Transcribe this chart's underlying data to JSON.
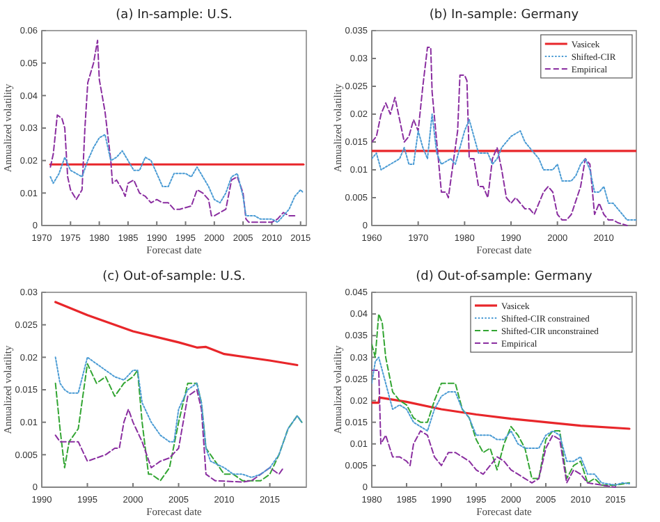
{
  "chart_data": [
    {
      "type": "line",
      "title": "(a) In-sample: U.S.",
      "xlabel": "Forecast date",
      "ylabel": "Annualized volatility",
      "xlim": [
        1970,
        2016
      ],
      "xticks": [
        1970,
        1975,
        1980,
        1985,
        1990,
        1995,
        2000,
        2005,
        2010,
        2015
      ],
      "ylim": [
        0,
        0.06
      ],
      "yticks": [
        0,
        0.01,
        0.02,
        0.03,
        0.04,
        0.05,
        0.06
      ],
      "legend": false,
      "series": [
        {
          "color": "#e8262a",
          "line_style": "solid",
          "x": [
            1971.5,
            2015.5
          ],
          "values": [
            0.0188,
            0.0188
          ]
        },
        {
          "color": "#4a9bd4",
          "line_style": "dotted",
          "x": [
            1971.5,
            1972,
            1973,
            1974,
            1975,
            1976,
            1977,
            1978,
            1979,
            1980,
            1981,
            1982,
            1983,
            1984,
            1985,
            1986,
            1987,
            1988,
            1989,
            1990,
            1991,
            1992,
            1993,
            1995,
            1996,
            1997,
            1998,
            1999,
            2000,
            2001,
            2002,
            2003,
            2004,
            2005,
            2005.5,
            2007,
            2008,
            2010,
            2011,
            2012,
            2013,
            2014,
            2015,
            2015.5
          ],
          "values": [
            0.015,
            0.013,
            0.016,
            0.021,
            0.017,
            0.016,
            0.015,
            0.02,
            0.024,
            0.027,
            0.028,
            0.02,
            0.021,
            0.023,
            0.02,
            0.017,
            0.017,
            0.021,
            0.02,
            0.016,
            0.012,
            0.012,
            0.016,
            0.016,
            0.015,
            0.018,
            0.015,
            0.012,
            0.008,
            0.007,
            0.01,
            0.015,
            0.016,
            0.009,
            0.003,
            0.003,
            0.002,
            0.002,
            0.001,
            0.003,
            0.005,
            0.009,
            0.011,
            0.01
          ]
        },
        {
          "color": "#8a2ea0",
          "line_style": "dashed",
          "x": [
            1971.5,
            1972,
            1972.7,
            1973.5,
            1974,
            1974.5,
            1975,
            1976,
            1977,
            1977.5,
            1978,
            1979,
            1979.7,
            1980,
            1981,
            1982,
            1982.3,
            1983,
            1984,
            1984.5,
            1985,
            1986,
            1987,
            1988,
            1989,
            1990,
            1991,
            1992,
            1993,
            1994,
            1996,
            1997,
            1998,
            1999,
            1999.5,
            2000,
            2002,
            2003,
            2004,
            2005,
            2005.5,
            2006,
            2008,
            2009,
            2010,
            2011,
            2012,
            2013,
            2014
          ],
          "values": [
            0.018,
            0.022,
            0.034,
            0.033,
            0.03,
            0.015,
            0.011,
            0.008,
            0.011,
            0.03,
            0.044,
            0.05,
            0.057,
            0.045,
            0.035,
            0.02,
            0.013,
            0.014,
            0.011,
            0.009,
            0.013,
            0.014,
            0.01,
            0.009,
            0.007,
            0.008,
            0.007,
            0.007,
            0.005,
            0.005,
            0.006,
            0.011,
            0.01,
            0.008,
            0.003,
            0.003,
            0.005,
            0.014,
            0.015,
            0.01,
            0.002,
            0.001,
            0.001,
            0.001,
            0.001,
            0.002,
            0.004,
            0.003,
            0.003
          ]
        }
      ]
    },
    {
      "type": "line",
      "title": "(b) In-sample: Germany",
      "xlabel": "Forecast date",
      "ylabel": "Annualized volatility",
      "xlim": [
        1960,
        2017
      ],
      "xticks": [
        1960,
        1970,
        1980,
        1990,
        2000,
        2010
      ],
      "ylim": [
        0,
        0.035
      ],
      "yticks": [
        0,
        0.005,
        0.01,
        0.015,
        0.02,
        0.025,
        0.03,
        0.035
      ],
      "legend": "top right",
      "series": [
        {
          "name": "Vasicek",
          "color": "#e8262a",
          "line_style": "solid",
          "x": [
            1960,
            2017
          ],
          "values": [
            0.0134,
            0.0134
          ]
        },
        {
          "name": "Shifted-CIR",
          "color": "#4a9bd4",
          "line_style": "dotted",
          "x": [
            1960,
            1961,
            1962,
            1964,
            1966,
            1967,
            1968,
            1969,
            1970,
            1971,
            1972,
            1973,
            1974,
            1975,
            1977,
            1978,
            1980,
            1981,
            1982,
            1983,
            1985,
            1986,
            1987,
            1988,
            1990,
            1992,
            1993,
            1995,
            1996,
            1997,
            1999,
            2000,
            2001,
            2003,
            2004,
            2005,
            2006,
            2007,
            2008,
            2009,
            2010,
            2011,
            2012,
            2013,
            2015,
            2017
          ],
          "values": [
            0.012,
            0.013,
            0.01,
            0.011,
            0.012,
            0.014,
            0.011,
            0.011,
            0.017,
            0.014,
            0.012,
            0.02,
            0.013,
            0.011,
            0.012,
            0.011,
            0.017,
            0.019,
            0.016,
            0.013,
            0.013,
            0.011,
            0.012,
            0.014,
            0.016,
            0.017,
            0.015,
            0.013,
            0.012,
            0.01,
            0.01,
            0.011,
            0.008,
            0.008,
            0.009,
            0.011,
            0.012,
            0.01,
            0.006,
            0.006,
            0.007,
            0.004,
            0.004,
            0.003,
            0.001,
            0.001
          ]
        },
        {
          "name": "Empirical",
          "color": "#8a2ea0",
          "line_style": "dashed",
          "x": [
            1960,
            1961,
            1962,
            1963,
            1964,
            1965,
            1966,
            1967,
            1968,
            1969,
            1970,
            1971,
            1972,
            1972.7,
            1973,
            1974,
            1975,
            1976,
            1976.5,
            1977,
            1978,
            1978.5,
            1979,
            1980,
            1980.5,
            1981,
            1982,
            1983,
            1984,
            1985,
            1986,
            1987,
            1988,
            1989,
            1990,
            1991,
            1992,
            1993,
            1994,
            1995,
            1997,
            1998,
            1999,
            2000,
            2001,
            2002,
            2003,
            2005,
            2006,
            2007,
            2008,
            2009,
            2010,
            2011,
            2012,
            2013,
            2015
          ],
          "values": [
            0.015,
            0.016,
            0.02,
            0.022,
            0.02,
            0.023,
            0.019,
            0.015,
            0.016,
            0.019,
            0.017,
            0.025,
            0.032,
            0.032,
            0.024,
            0.015,
            0.006,
            0.006,
            0.005,
            0.008,
            0.014,
            0.017,
            0.027,
            0.027,
            0.026,
            0.012,
            0.012,
            0.007,
            0.007,
            0.005,
            0.012,
            0.014,
            0.01,
            0.005,
            0.004,
            0.005,
            0.004,
            0.003,
            0.003,
            0.002,
            0.006,
            0.007,
            0.006,
            0.002,
            0.001,
            0.001,
            0.002,
            0.007,
            0.012,
            0.011,
            0.002,
            0.004,
            0.002,
            0.001,
            0.001,
            0.0005,
            0
          ]
        }
      ]
    },
    {
      "type": "line",
      "title": "(c) Out-of-sample: U.S.",
      "xlabel": "Forecast date",
      "ylabel": "Annualized volatility",
      "xlim": [
        1990,
        2019
      ],
      "xticks": [
        1990,
        1995,
        2000,
        2005,
        2010,
        2015
      ],
      "ylim": [
        0,
        0.03
      ],
      "yticks": [
        0,
        0.005,
        0.01,
        0.015,
        0.02,
        0.025,
        0.03
      ],
      "legend": false,
      "series": [
        {
          "color": "#e8262a",
          "line_style": "solid",
          "x": [
            1991.5,
            1995,
            2000,
            2005,
            2007,
            2008,
            2010,
            2015,
            2018
          ],
          "values": [
            0.0285,
            0.0265,
            0.024,
            0.0223,
            0.0215,
            0.0216,
            0.0205,
            0.0195,
            0.0188
          ]
        },
        {
          "color": "#4a9bd4",
          "line_style": "dotted",
          "x": [
            1991.5,
            1992,
            1992.5,
            1993,
            1994,
            1995,
            1996,
            1997,
            1998,
            1999,
            2000,
            2000.5,
            2001,
            2002,
            2003,
            2004,
            2004.5,
            2005,
            2006,
            2007,
            2007.5,
            2008,
            2008.5,
            2010,
            2011,
            2012,
            2013,
            2014,
            2015,
            2016,
            2017,
            2018,
            2018.5
          ],
          "values": [
            0.02,
            0.016,
            0.015,
            0.0145,
            0.0145,
            0.02,
            0.019,
            0.018,
            0.017,
            0.0165,
            0.018,
            0.018,
            0.013,
            0.01,
            0.008,
            0.007,
            0.007,
            0.012,
            0.015,
            0.016,
            0.013,
            0.006,
            0.004,
            0.003,
            0.002,
            0.002,
            0.0015,
            0.002,
            0.003,
            0.005,
            0.009,
            0.011,
            0.01
          ]
        },
        {
          "color": "#32a532",
          "line_style": "dashed",
          "x": [
            1991.5,
            1992,
            1992.5,
            1993,
            1994,
            1995,
            1996,
            1997,
            1998,
            1999,
            2000,
            2000.5,
            2001,
            2001.7,
            2002,
            2003,
            2004,
            2005,
            2006,
            2007,
            2007.5,
            2008,
            2009,
            2010,
            2011,
            2012,
            2014,
            2015,
            2016,
            2017,
            2018,
            2018.5
          ],
          "values": [
            0.016,
            0.009,
            0.003,
            0.007,
            0.009,
            0.019,
            0.016,
            0.017,
            0.014,
            0.016,
            0.017,
            0.018,
            0.01,
            0.002,
            0.002,
            0.001,
            0.003,
            0.01,
            0.016,
            0.016,
            0.013,
            0.006,
            0.004,
            0.002,
            0.002,
            0.001,
            0.001,
            0.002,
            0.005,
            0.009,
            0.011,
            0.01
          ]
        },
        {
          "color": "#8a2ea0",
          "line_style": "dashed",
          "x": [
            1991.5,
            1992,
            1993,
            1994,
            1995,
            1997,
            1998,
            1998.5,
            1999,
            1999.5,
            2000,
            2001,
            2002,
            2003,
            2004,
            2005,
            2006,
            2007,
            2007.5,
            2008,
            2009,
            2012,
            2013,
            2014,
            2015,
            2016,
            2016.5
          ],
          "values": [
            0.008,
            0.007,
            0.007,
            0.007,
            0.004,
            0.005,
            0.006,
            0.006,
            0.01,
            0.012,
            0.01,
            0.007,
            0.003,
            0.004,
            0.0045,
            0.006,
            0.014,
            0.015,
            0.012,
            0.002,
            0.001,
            0.0008,
            0.001,
            0.002,
            0.003,
            0.002,
            0.003
          ]
        }
      ]
    },
    {
      "type": "line",
      "title": "(d) Out-of-sample: Germany",
      "xlabel": "Forecast date",
      "ylabel": "Annualized volatility",
      "xlim": [
        1980,
        2018
      ],
      "xticks": [
        1980,
        1985,
        1990,
        1995,
        2000,
        2005,
        2010,
        2015
      ],
      "ylim": [
        0,
        0.045
      ],
      "yticks": [
        0,
        0.005,
        0.01,
        0.015,
        0.02,
        0.025,
        0.03,
        0.035,
        0.04,
        0.045
      ],
      "legend": "top right",
      "series": [
        {
          "name": "Vasicek",
          "color": "#e8262a",
          "line_style": "solid",
          "x": [
            1980,
            1981,
            1981.1,
            1985,
            1990,
            1995,
            2000,
            2005,
            2010,
            2017
          ],
          "values": [
            0.0195,
            0.0195,
            0.0207,
            0.0197,
            0.018,
            0.0168,
            0.0158,
            0.015,
            0.0142,
            0.0135
          ]
        },
        {
          "name": "Shifted-CIR constrained",
          "color": "#4a9bd4",
          "line_style": "dotted",
          "x": [
            1980,
            1980.5,
            1981,
            1982,
            1983,
            1984,
            1985,
            1986,
            1987,
            1988,
            1989,
            1990,
            1991,
            1992,
            1993,
            1994,
            1995,
            1996,
            1997,
            1998,
            1999,
            2000,
            2001,
            2002,
            2004,
            2005,
            2006,
            2007,
            2008,
            2009,
            2010,
            2011,
            2012,
            2013,
            2015,
            2016,
            2017
          ],
          "values": [
            0.024,
            0.029,
            0.03,
            0.024,
            0.018,
            0.019,
            0.018,
            0.015,
            0.014,
            0.013,
            0.018,
            0.021,
            0.022,
            0.022,
            0.018,
            0.016,
            0.012,
            0.012,
            0.012,
            0.011,
            0.011,
            0.013,
            0.01,
            0.009,
            0.009,
            0.012,
            0.013,
            0.012,
            0.006,
            0.006,
            0.007,
            0.003,
            0.003,
            0.001,
            0.0005,
            0.001,
            0.0008
          ]
        },
        {
          "name": "Shifted-CIR unconstrained",
          "color": "#32a532",
          "line_style": "dashed",
          "x": [
            1980,
            1980.5,
            1981,
            1981.5,
            1982,
            1983,
            1984,
            1985,
            1986,
            1987,
            1988,
            1989,
            1990,
            1992,
            1993,
            1994,
            1995,
            1996,
            1997,
            1998,
            1999,
            2000,
            2001,
            2002,
            2003,
            2004,
            2005,
            2006,
            2007,
            2008,
            2009,
            2010,
            2011,
            2012,
            2013,
            2015,
            2017
          ],
          "values": [
            0.033,
            0.03,
            0.04,
            0.038,
            0.03,
            0.022,
            0.02,
            0.019,
            0.016,
            0.015,
            0.015,
            0.02,
            0.024,
            0.024,
            0.018,
            0.016,
            0.011,
            0.008,
            0.009,
            0.004,
            0.01,
            0.014,
            0.012,
            0.009,
            0.002,
            0.002,
            0.011,
            0.013,
            0.013,
            0.002,
            0.005,
            0.006,
            0.001,
            0.002,
            0.0005,
            0.0005,
            0.001
          ]
        },
        {
          "name": "Empirical",
          "color": "#8a2ea0",
          "line_style": "dashed",
          "x": [
            1980,
            1981,
            1981.3,
            1982,
            1983,
            1984,
            1985,
            1985.5,
            1986,
            1987,
            1988,
            1989,
            1990,
            1991,
            1992,
            1993,
            1994,
            1995,
            1996,
            1997,
            1998,
            1999,
            2000,
            2002,
            2003,
            2004,
            2005,
            2006,
            2007,
            2008,
            2009,
            2010,
            2011,
            2013,
            2015
          ],
          "values": [
            0.027,
            0.027,
            0.01,
            0.012,
            0.007,
            0.007,
            0.006,
            0.005,
            0.01,
            0.013,
            0.012,
            0.007,
            0.005,
            0.008,
            0.008,
            0.007,
            0.006,
            0.004,
            0.003,
            0.005,
            0.007,
            0.006,
            0.004,
            0.002,
            0.001,
            0.002,
            0.009,
            0.012,
            0.011,
            0.001,
            0.004,
            0.003,
            0.001,
            0.0005,
            0
          ]
        }
      ]
    }
  ]
}
